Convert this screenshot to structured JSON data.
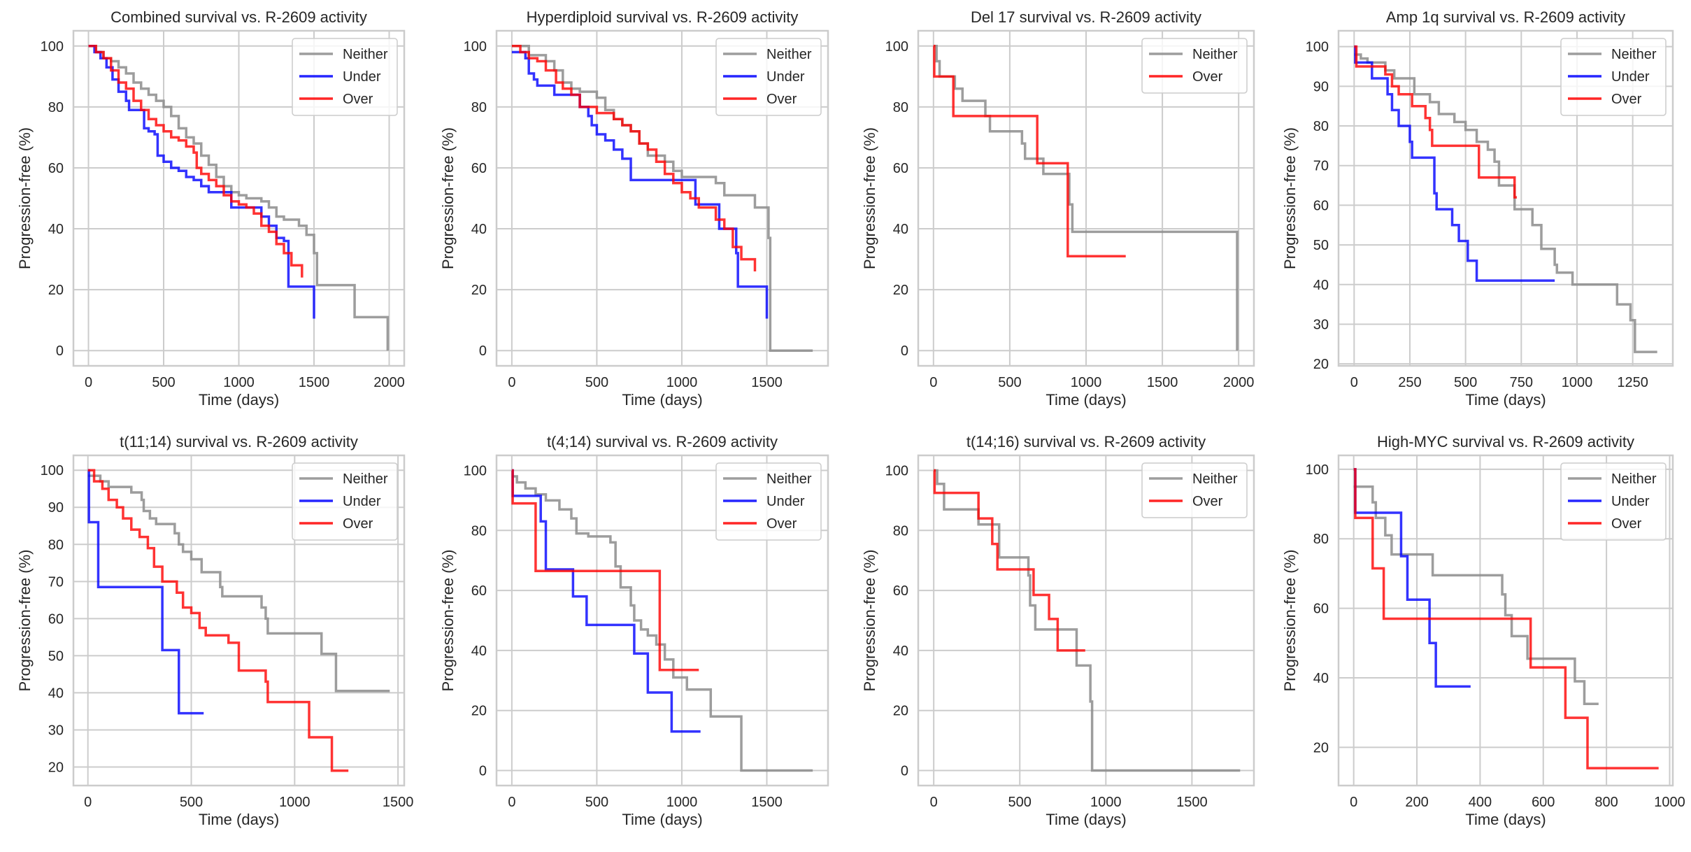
{
  "figure": {
    "colors": {
      "Neither": "#8c8c8c",
      "Under": "#0000ff",
      "Over": "#ff0000",
      "grid": "#cccccc",
      "frame": "#cccccc"
    }
  },
  "chart_data": [
    {
      "type": "line",
      "step": true,
      "title": "Combined survival vs. R-2609 activity",
      "xlabel": "Time (days)",
      "ylabel": "Progression-free (%)",
      "xlim": [
        -100,
        2100
      ],
      "ylim": [
        -5,
        105
      ],
      "xticks": [
        0,
        500,
        1000,
        1500,
        2000
      ],
      "yticks": [
        0,
        20,
        40,
        60,
        80,
        100
      ],
      "legend": "top-right",
      "grid": true,
      "series": [
        {
          "name": "Neither",
          "x": [
            0,
            50,
            100,
            150,
            200,
            250,
            300,
            350,
            400,
            450,
            500,
            550,
            600,
            650,
            700,
            750,
            800,
            850,
            900,
            950,
            1000,
            1050,
            1100,
            1150,
            1200,
            1250,
            1300,
            1350,
            1400,
            1450,
            1500,
            1520,
            1750,
            1770,
            1990
          ],
          "y": [
            100,
            98,
            96,
            95,
            93,
            91,
            88,
            86,
            84,
            82,
            80,
            77,
            73,
            70,
            68,
            64,
            61,
            57,
            54,
            52,
            51,
            50,
            50,
            49,
            47,
            44,
            43,
            43,
            41,
            38,
            32,
            21.5,
            21.5,
            11,
            0
          ]
        },
        {
          "name": "Under",
          "x": [
            0,
            40,
            80,
            120,
            160,
            200,
            250,
            270,
            350,
            370,
            400,
            440,
            460,
            500,
            550,
            600,
            650,
            700,
            750,
            800,
            850,
            950,
            1000,
            1100,
            1150,
            1200,
            1250,
            1300,
            1330,
            1500,
            1500
          ],
          "y": [
            100,
            98,
            96,
            93,
            89,
            85,
            82,
            79,
            79,
            73,
            72,
            71,
            64,
            62,
            60,
            59,
            57,
            56,
            54,
            52,
            52,
            47,
            47,
            47,
            44,
            41,
            37,
            36,
            21,
            21,
            10.5
          ]
        },
        {
          "name": "Over",
          "x": [
            0,
            50,
            100,
            150,
            200,
            250,
            300,
            350,
            400,
            450,
            500,
            550,
            600,
            650,
            700,
            720,
            750,
            800,
            850,
            900,
            950,
            1000,
            1050,
            1100,
            1150,
            1200,
            1250,
            1300,
            1350,
            1420
          ],
          "y": [
            100,
            98,
            96,
            92,
            88,
            86,
            82,
            79,
            76,
            74,
            72,
            70,
            69,
            67,
            65,
            60,
            58,
            56,
            54,
            51,
            49,
            48,
            47,
            45,
            41,
            39,
            35,
            32,
            28,
            24
          ]
        }
      ]
    },
    {
      "type": "line",
      "step": true,
      "title": "Hyperdiploid survival vs. R-2609 activity",
      "xlabel": "Time (days)",
      "ylabel": "Progression-free (%)",
      "xlim": [
        -90,
        1860
      ],
      "ylim": [
        -5,
        105
      ],
      "xticks": [
        0,
        500,
        1000,
        1500
      ],
      "yticks": [
        0,
        20,
        40,
        60,
        80,
        100
      ],
      "legend": "top-right",
      "grid": true,
      "series": [
        {
          "name": "Neither",
          "x": [
            0,
            100,
            200,
            250,
            300,
            350,
            400,
            500,
            550,
            600,
            650,
            700,
            750,
            800,
            900,
            950,
            1000,
            1200,
            1250,
            1400,
            1430,
            1510,
            1520,
            1770
          ],
          "y": [
            100,
            97,
            95,
            92,
            88,
            86,
            85,
            83,
            79,
            76,
            74,
            72,
            68,
            64,
            62,
            59,
            57,
            55,
            51,
            51,
            47,
            37,
            0,
            0
          ]
        },
        {
          "name": "Under",
          "x": [
            0,
            80,
            100,
            130,
            150,
            250,
            400,
            450,
            470,
            500,
            550,
            600,
            650,
            700,
            1080,
            1220,
            1320,
            1330,
            1500,
            1500
          ],
          "y": [
            98,
            96,
            91,
            89,
            87,
            84,
            80,
            77,
            74,
            71,
            69,
            66,
            63,
            56,
            48,
            40,
            32,
            21,
            21,
            10.5
          ]
        },
        {
          "name": "Over",
          "x": [
            0,
            50,
            100,
            150,
            200,
            260,
            300,
            350,
            400,
            500,
            600,
            650,
            700,
            750,
            800,
            850,
            900,
            950,
            1000,
            1050,
            1100,
            1200,
            1250,
            1300,
            1350,
            1430
          ],
          "y": [
            100,
            98,
            96,
            95,
            92,
            88,
            86,
            84,
            80,
            78,
            76,
            74,
            72,
            68,
            66,
            62,
            58,
            55,
            52,
            50,
            47,
            43,
            40,
            34,
            30,
            26
          ]
        }
      ]
    },
    {
      "type": "line",
      "step": true,
      "title": "Del 17 survival vs. R-2609 activity",
      "xlabel": "Time (days)",
      "ylabel": "Progression-free (%)",
      "xlim": [
        -100,
        2100
      ],
      "ylim": [
        -5,
        105
      ],
      "xticks": [
        0,
        500,
        1000,
        1500,
        2000
      ],
      "yticks": [
        0,
        20,
        40,
        60,
        80,
        100
      ],
      "legend": "top-right",
      "grid": true,
      "series": [
        {
          "name": "Neither",
          "x": [
            0,
            20,
            40,
            140,
            190,
            340,
            370,
            580,
            600,
            720,
            890,
            910,
            1990
          ],
          "y": [
            100,
            95,
            90,
            86,
            82,
            77,
            72,
            68,
            63,
            58,
            48,
            39,
            0
          ]
        },
        {
          "name": "Over",
          "x": [
            0,
            5,
            130,
            680,
            880,
            1260
          ],
          "y": [
            100,
            90,
            77,
            61.5,
            31,
            31
          ]
        }
      ]
    },
    {
      "type": "line",
      "step": true,
      "title": "Amp 1q survival vs. R-2609 activity",
      "xlabel": "Time (days)",
      "ylabel": "Progression-free (%)",
      "xlim": [
        -70,
        1430
      ],
      "ylim": [
        19.5,
        104
      ],
      "xticks": [
        0,
        250,
        500,
        750,
        1000,
        1250
      ],
      "yticks": [
        20,
        30,
        40,
        50,
        60,
        70,
        80,
        90,
        100
      ],
      "legend": "top-right",
      "grid": true,
      "series": [
        {
          "name": "Neither",
          "x": [
            0,
            30,
            60,
            140,
            180,
            270,
            340,
            380,
            450,
            500,
            550,
            600,
            630,
            650,
            720,
            800,
            840,
            900,
            910,
            980,
            1180,
            1240,
            1260,
            1360
          ],
          "y": [
            98,
            97,
            96,
            94,
            92,
            88,
            86,
            83,
            81,
            79,
            76,
            74,
            71,
            65,
            59,
            55,
            49,
            45,
            43,
            40,
            35,
            31,
            23,
            23
          ]
        },
        {
          "name": "Under",
          "x": [
            0,
            5,
            80,
            150,
            170,
            200,
            250,
            260,
            360,
            370,
            440,
            470,
            510,
            550,
            900
          ],
          "y": [
            100,
            96,
            92,
            88,
            84,
            80,
            76,
            72,
            63,
            59,
            55,
            51,
            46,
            41,
            41
          ]
        },
        {
          "name": "Over",
          "x": [
            0,
            10,
            140,
            170,
            200,
            260,
            320,
            340,
            350,
            560,
            720,
            730
          ],
          "y": [
            100,
            95,
            93,
            90,
            88,
            85,
            82,
            79,
            75,
            67,
            62,
            62
          ]
        }
      ]
    },
    {
      "type": "line",
      "step": true,
      "title": "t(11;14) survival vs. R-2609 activity",
      "xlabel": "Time (days)",
      "ylabel": "Progression-free (%)",
      "xlim": [
        -70,
        1530
      ],
      "ylim": [
        15,
        104
      ],
      "xticks": [
        0,
        500,
        1000,
        1500
      ],
      "yticks": [
        20,
        30,
        40,
        50,
        60,
        70,
        80,
        90,
        100
      ],
      "legend": "top-right",
      "grid": true,
      "series": [
        {
          "name": "Neither",
          "x": [
            0,
            60,
            100,
            210,
            260,
            270,
            300,
            330,
            420,
            440,
            460,
            500,
            550,
            640,
            650,
            840,
            860,
            870,
            1130,
            1200,
            1460
          ],
          "y": [
            98.5,
            97,
            95.5,
            94,
            92,
            89,
            87,
            85.5,
            83,
            80,
            78,
            76,
            72.5,
            68.5,
            66,
            63,
            60,
            56,
            50.5,
            40.5,
            40.5
          ]
        },
        {
          "name": "Under",
          "x": [
            0,
            5,
            50,
            360,
            440,
            560
          ],
          "y": [
            100,
            86,
            68.5,
            51.5,
            34.5,
            34.5
          ]
        },
        {
          "name": "Over",
          "x": [
            0,
            30,
            70,
            100,
            140,
            170,
            210,
            250,
            290,
            320,
            360,
            430,
            460,
            500,
            540,
            570,
            680,
            730,
            860,
            870,
            1070,
            1180,
            1260
          ],
          "y": [
            100,
            97,
            95,
            92,
            90,
            87,
            84,
            82,
            79,
            74,
            70,
            67,
            63,
            61.5,
            57.5,
            55.5,
            53.5,
            46,
            43,
            37.5,
            28,
            19,
            19
          ]
        }
      ]
    },
    {
      "type": "line",
      "step": true,
      "title": "t(4;14) survival vs. R-2609 activity",
      "xlabel": "Time (days)",
      "ylabel": "Progression-free (%)",
      "xlim": [
        -90,
        1860
      ],
      "ylim": [
        -5,
        105
      ],
      "xticks": [
        0,
        500,
        1000,
        1500
      ],
      "yticks": [
        0,
        20,
        40,
        60,
        80,
        100
      ],
      "legend": "top-right",
      "grid": true,
      "series": [
        {
          "name": "Neither",
          "x": [
            0,
            30,
            80,
            140,
            200,
            280,
            350,
            380,
            450,
            580,
            610,
            640,
            700,
            720,
            760,
            800,
            850,
            900,
            950,
            1030,
            1170,
            1350,
            1770
          ],
          "y": [
            98,
            96,
            94,
            92,
            90,
            87,
            84,
            79,
            78,
            76,
            68,
            61,
            55,
            50,
            47,
            45,
            42,
            37,
            31,
            27,
            18,
            0,
            0
          ]
        },
        {
          "name": "Under",
          "x": [
            0,
            5,
            170,
            200,
            360,
            440,
            720,
            800,
            940,
            1110
          ],
          "y": [
            100,
            91.5,
            83,
            67,
            58,
            48.5,
            39,
            26,
            13,
            13
          ]
        },
        {
          "name": "Over",
          "x": [
            0,
            5,
            140,
            870,
            1100
          ],
          "y": [
            100,
            89,
            66.5,
            33.5,
            33.5
          ]
        }
      ]
    },
    {
      "type": "line",
      "step": true,
      "title": "t(14;16) survival vs. R-2609 activity",
      "xlabel": "Time (days)",
      "ylabel": "Progression-free (%)",
      "xlim": [
        -90,
        1860
      ],
      "ylim": [
        -5,
        105
      ],
      "xticks": [
        0,
        500,
        1000,
        1500
      ],
      "yticks": [
        0,
        20,
        40,
        60,
        80,
        100
      ],
      "legend": "top-right",
      "grid": true,
      "series": [
        {
          "name": "Neither",
          "x": [
            0,
            20,
            60,
            260,
            380,
            550,
            560,
            590,
            830,
            910,
            920,
            1780
          ],
          "y": [
            100,
            95.5,
            87,
            82,
            71,
            65,
            55,
            47,
            35,
            23,
            0,
            0
          ]
        },
        {
          "name": "Over",
          "x": [
            0,
            5,
            260,
            340,
            370,
            580,
            670,
            720,
            880
          ],
          "y": [
            100,
            92.5,
            84,
            75.5,
            67,
            58.5,
            50.5,
            40,
            40
          ]
        }
      ]
    },
    {
      "type": "line",
      "step": true,
      "title": "High-MYC survival vs. R-2609 activity",
      "xlabel": "Time (days)",
      "ylabel": "Progression-free (%)",
      "xlim": [
        -48,
        1010
      ],
      "ylim": [
        9,
        104
      ],
      "xticks": [
        0,
        200,
        400,
        600,
        800,
        1000
      ],
      "yticks": [
        20,
        40,
        60,
        80,
        100
      ],
      "legend": "top-right",
      "grid": true,
      "series": [
        {
          "name": "Neither",
          "x": [
            0,
            60,
            70,
            100,
            120,
            250,
            470,
            480,
            500,
            550,
            700,
            730,
            775
          ],
          "y": [
            95,
            90.5,
            86,
            81,
            75.5,
            69.5,
            64,
            58,
            52,
            45.5,
            39,
            32.5,
            32.5
          ]
        },
        {
          "name": "Under",
          "x": [
            0,
            5,
            150,
            170,
            240,
            260,
            370
          ],
          "y": [
            100,
            87.5,
            75,
            62.5,
            50,
            37.5,
            37.5
          ]
        },
        {
          "name": "Over",
          "x": [
            0,
            5,
            60,
            95,
            560,
            670,
            740,
            965
          ],
          "y": [
            100,
            86,
            71.5,
            57,
            43,
            28.5,
            14,
            14
          ]
        }
      ]
    }
  ]
}
